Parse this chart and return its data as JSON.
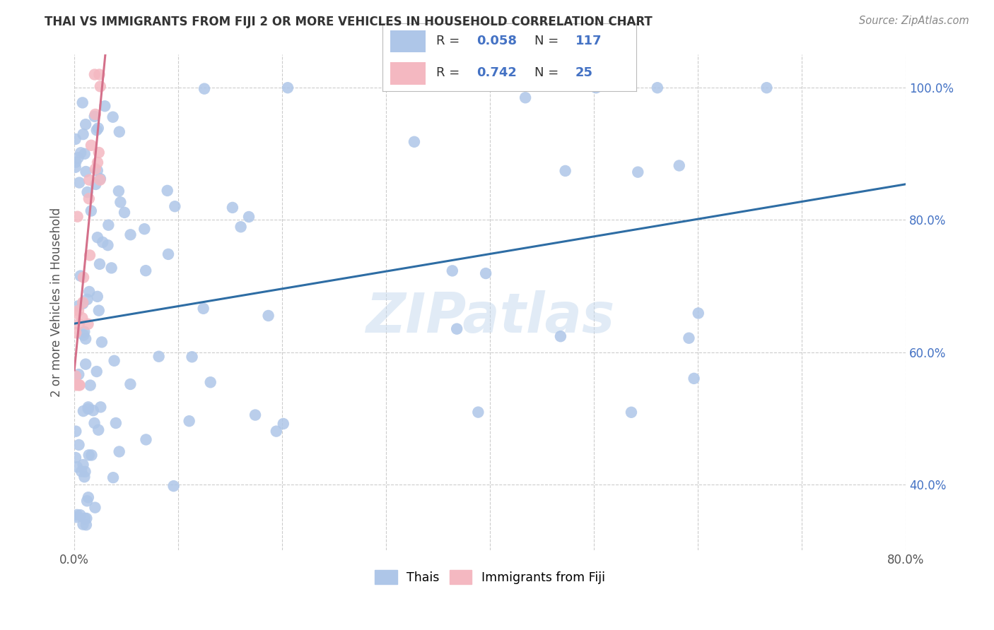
{
  "title": "THAI VS IMMIGRANTS FROM FIJI 2 OR MORE VEHICLES IN HOUSEHOLD CORRELATION CHART",
  "source": "Source: ZipAtlas.com",
  "ylabel": "2 or more Vehicles in Household",
  "watermark": "ZIPatlas",
  "xlim": [
    0.0,
    0.8
  ],
  "ylim": [
    0.3,
    1.05
  ],
  "xtick_positions": [
    0.0,
    0.1,
    0.2,
    0.3,
    0.4,
    0.5,
    0.6,
    0.7,
    0.8
  ],
  "xtick_labels": [
    "0.0%",
    "",
    "",
    "",
    "",
    "",
    "",
    "",
    "80.0%"
  ],
  "ytick_positions": [
    0.4,
    0.6,
    0.8,
    1.0
  ],
  "ytick_labels_right": [
    "40.0%",
    "60.0%",
    "80.0%",
    "100.0%"
  ],
  "thai_color": "#aec6e8",
  "fiji_color": "#f4b8c1",
  "thai_line_color": "#2e6da4",
  "fiji_line_color": "#d4708a",
  "background_color": "#ffffff",
  "grid_color": "#cccccc",
  "title_color": "#333333",
  "source_color": "#888888",
  "right_axis_color": "#4472c4",
  "R_thai": "0.058",
  "N_thai": "117",
  "R_fiji": "0.742",
  "N_fiji": "25",
  "legend_label_thai": "Thais",
  "legend_label_fiji": "Immigrants from Fiji",
  "thai_seed": 7,
  "fiji_seed": 12
}
